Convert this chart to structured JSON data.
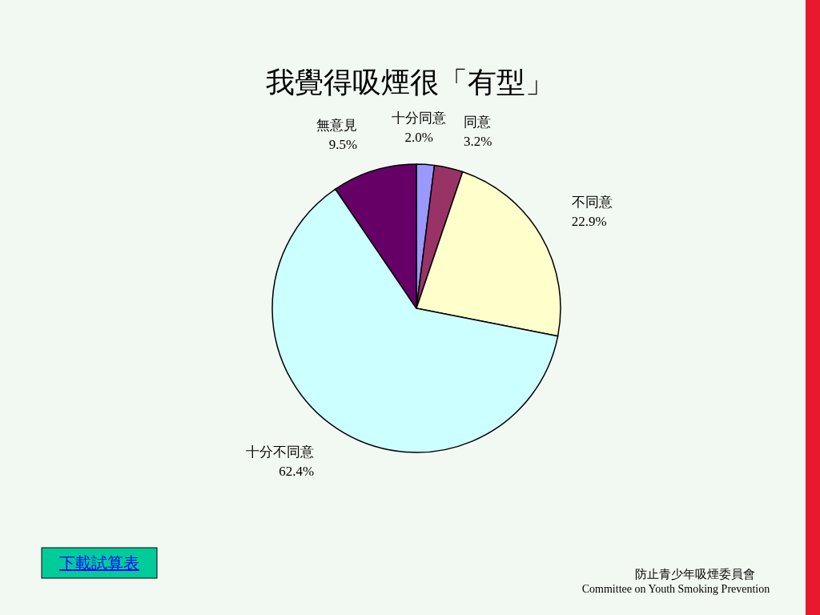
{
  "chart_data": {
    "type": "pie",
    "title": "我覺得吸煙很「有型」",
    "categories": [
      "十分同意",
      "同意",
      "不同意",
      "十分不同意",
      "無意見"
    ],
    "values": [
      2.0,
      3.2,
      22.9,
      62.4,
      9.5
    ],
    "value_labels": [
      "2.0%",
      "3.2%",
      "22.9%",
      "62.4%",
      "9.5%"
    ],
    "colors": [
      "#9999ff",
      "#993366",
      "#ffffcc",
      "#ccffff",
      "#660066"
    ],
    "annotations": [
      "下載試算表",
      "防止青少年吸煙委員會",
      "Committee on Youth Smoking Prevention"
    ]
  }
}
